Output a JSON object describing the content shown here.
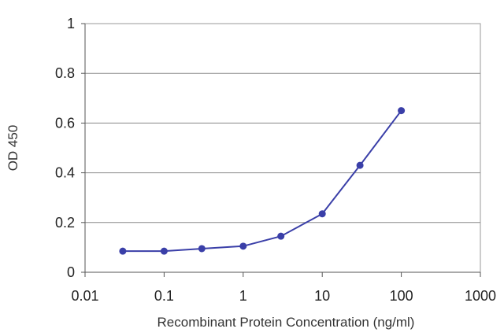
{
  "chart_data": {
    "type": "line",
    "title": "",
    "xlabel": "Recombinant Protein Concentration (ng/ml)",
    "ylabel": "OD 450",
    "x_scale": "log",
    "xlim": [
      0.01,
      1000
    ],
    "ylim": [
      0,
      1
    ],
    "x_ticks": [
      "0.01",
      "0.1",
      "1",
      "10",
      "100",
      "1000"
    ],
    "y_ticks": [
      "0",
      "0.2",
      "0.4",
      "0.6",
      "0.8",
      "1"
    ],
    "grid": {
      "horizontal": true,
      "vertical": false
    },
    "series": [
      {
        "color": "#3a3fa8",
        "x": [
          0.03,
          0.1,
          0.3,
          1,
          3,
          10,
          30,
          100
        ],
        "y": [
          0.085,
          0.085,
          0.095,
          0.105,
          0.145,
          0.235,
          0.43,
          0.65
        ]
      }
    ]
  }
}
